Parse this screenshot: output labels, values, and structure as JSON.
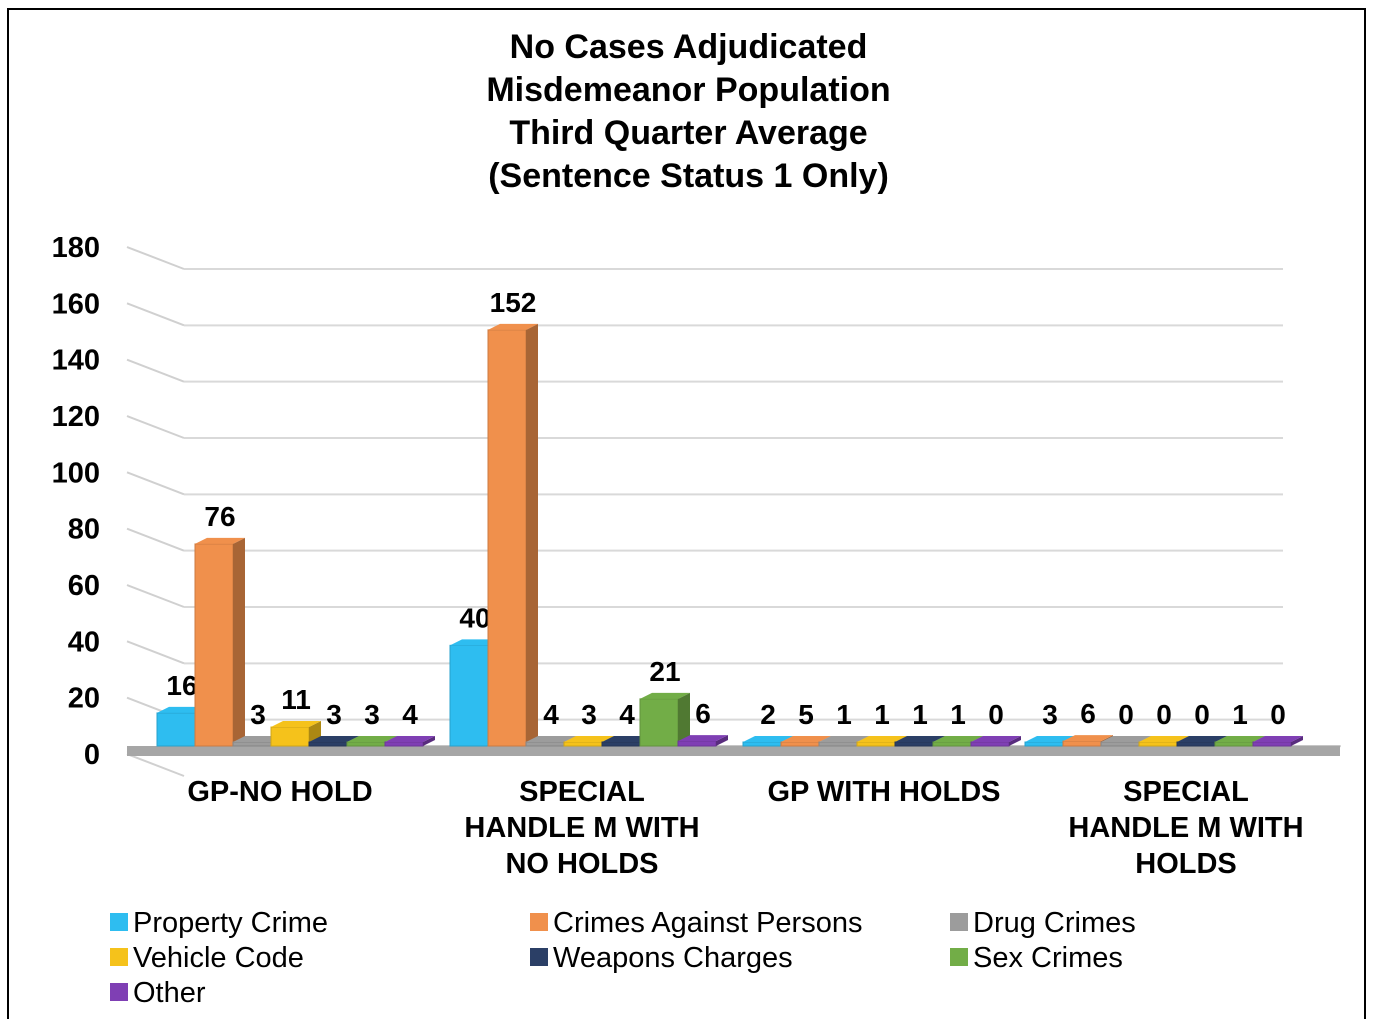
{
  "chart_data": {
    "type": "bar",
    "title": "No Cases Adjudicated\nMisdemeanor Population\nThird Quarter Average\n(Sentence Status 1 Only)",
    "title_lines": [
      "No Cases Adjudicated",
      "Misdemeanor Population",
      "Third Quarter Average",
      "(Sentence Status 1 Only)"
    ],
    "style": "3d-clustered-column",
    "categories": [
      [
        "GP-NO HOLD"
      ],
      [
        "SPECIAL",
        "HANDLE M WITH",
        "NO HOLDS"
      ],
      [
        "GP WITH HOLDS"
      ],
      [
        "SPECIAL",
        "HANDLE M WITH",
        "HOLDS"
      ]
    ],
    "ylim": [
      0,
      180
    ],
    "yticks": [
      0,
      20,
      40,
      60,
      80,
      100,
      120,
      140,
      160,
      180
    ],
    "grid": true,
    "legend_position": "bottom",
    "series": [
      {
        "name": "Property Crime",
        "color": "#2ebdf0",
        "values": [
          16,
          40,
          2,
          3
        ]
      },
      {
        "name": "Crimes Against Persons",
        "color": "#f0904c",
        "values": [
          76,
          152,
          5,
          6
        ]
      },
      {
        "name": "Drug Crimes",
        "color": "#9c9c9c",
        "values": [
          3,
          4,
          1,
          0
        ]
      },
      {
        "name": "Vehicle Code",
        "color": "#f5c21b",
        "values": [
          11,
          3,
          1,
          0
        ]
      },
      {
        "name": "Weapons Charges",
        "color": "#2b3f66",
        "values": [
          3,
          4,
          1,
          0
        ]
      },
      {
        "name": "Sex Crimes",
        "color": "#72ad47",
        "values": [
          3,
          21,
          1,
          1
        ]
      },
      {
        "name": "Other",
        "color": "#7f3fb4",
        "values": [
          4,
          6,
          0,
          0
        ]
      }
    ]
  }
}
